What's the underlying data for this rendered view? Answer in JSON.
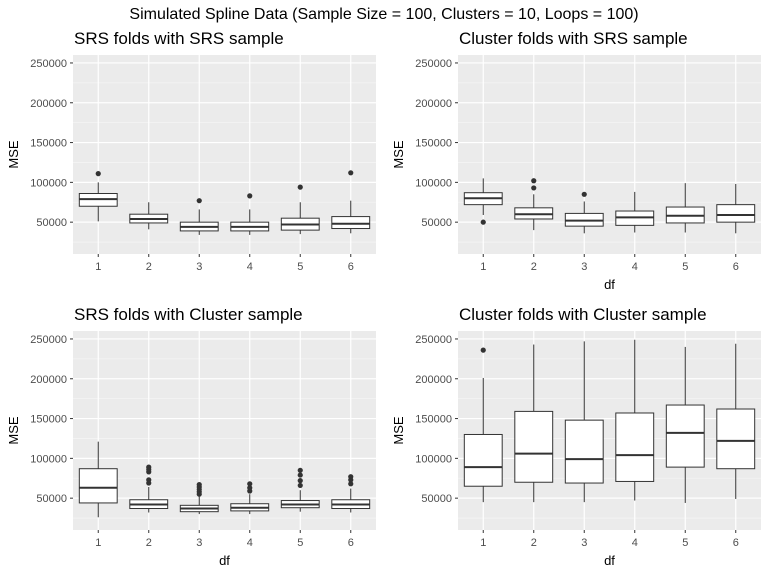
{
  "figure": {
    "title": "Simulated Spline Data (Sample Size = 100, Clusters = 10, Loops = 100)"
  },
  "chart_data": [
    {
      "type": "boxplot",
      "title": "SRS folds with SRS sample",
      "xlabel": "",
      "ylabel": "MSE",
      "ylim": [
        10000,
        260000
      ],
      "yticks": [
        50000,
        100000,
        150000,
        200000,
        250000
      ],
      "categories": [
        "1",
        "2",
        "3",
        "4",
        "5",
        "6"
      ],
      "boxes": [
        {
          "whisker_low": 51000,
          "q1": 70000,
          "median": 79000,
          "q3": 86000,
          "whisker_high": 100000,
          "outliers": [
            111000
          ]
        },
        {
          "whisker_low": 41000,
          "q1": 49000,
          "median": 54000,
          "q3": 60000,
          "whisker_high": 75000,
          "outliers": []
        },
        {
          "whisker_low": 34000,
          "q1": 39000,
          "median": 44000,
          "q3": 50000,
          "whisker_high": 66000,
          "outliers": [
            77000
          ]
        },
        {
          "whisker_low": 34000,
          "q1": 39000,
          "median": 44000,
          "q3": 50000,
          "whisker_high": 66000,
          "outliers": [
            83000
          ]
        },
        {
          "whisker_low": 35000,
          "q1": 40000,
          "median": 47000,
          "q3": 55000,
          "whisker_high": 75000,
          "outliers": [
            94000
          ]
        },
        {
          "whisker_low": 36000,
          "q1": 42000,
          "median": 48000,
          "q3": 57000,
          "whisker_high": 77000,
          "outliers": [
            112000
          ]
        }
      ]
    },
    {
      "type": "boxplot",
      "title": "Cluster folds with SRS sample",
      "xlabel": "df",
      "ylabel": "MSE",
      "ylim": [
        10000,
        260000
      ],
      "yticks": [
        50000,
        100000,
        150000,
        200000,
        250000
      ],
      "categories": [
        "1",
        "2",
        "3",
        "4",
        "5",
        "6"
      ],
      "boxes": [
        {
          "whisker_low": 59000,
          "q1": 72000,
          "median": 80000,
          "q3": 87000,
          "whisker_high": 105000,
          "outliers": [
            50000
          ]
        },
        {
          "whisker_low": 40000,
          "q1": 54000,
          "median": 60000,
          "q3": 68000,
          "whisker_high": 85000,
          "outliers": [
            93000,
            102000
          ]
        },
        {
          "whisker_low": 36000,
          "q1": 45000,
          "median": 52000,
          "q3": 61000,
          "whisker_high": 76000,
          "outliers": [
            85000
          ]
        },
        {
          "whisker_low": 37000,
          "q1": 46000,
          "median": 56000,
          "q3": 64000,
          "whisker_high": 88000,
          "outliers": []
        },
        {
          "whisker_low": 37000,
          "q1": 49000,
          "median": 58000,
          "q3": 69000,
          "whisker_high": 99000,
          "outliers": []
        },
        {
          "whisker_low": 36000,
          "q1": 50000,
          "median": 59000,
          "q3": 72000,
          "whisker_high": 98000,
          "outliers": []
        }
      ]
    },
    {
      "type": "boxplot",
      "title": "SRS folds with Cluster sample",
      "xlabel": "df",
      "ylabel": "MSE",
      "ylim": [
        10000,
        260000
      ],
      "yticks": [
        50000,
        100000,
        150000,
        200000,
        250000
      ],
      "categories": [
        "1",
        "2",
        "3",
        "4",
        "5",
        "6"
      ],
      "boxes": [
        {
          "whisker_low": 26000,
          "q1": 44000,
          "median": 63000,
          "q3": 87000,
          "whisker_high": 121000,
          "outliers": []
        },
        {
          "whisker_low": 32000,
          "q1": 37000,
          "median": 42000,
          "q3": 48000,
          "whisker_high": 64000,
          "outliers": [
            69000,
            73000,
            83000,
            86000,
            89000
          ]
        },
        {
          "whisker_low": 30000,
          "q1": 33000,
          "median": 37000,
          "q3": 41000,
          "whisker_high": 52000,
          "outliers": [
            55000,
            58000,
            61000,
            64000,
            67000
          ]
        },
        {
          "whisker_low": 30000,
          "q1": 34000,
          "median": 38000,
          "q3": 43000,
          "whisker_high": 55000,
          "outliers": [
            59000,
            63000,
            68000
          ]
        },
        {
          "whisker_low": 33000,
          "q1": 38000,
          "median": 42000,
          "q3": 47000,
          "whisker_high": 60000,
          "outliers": [
            66000,
            72000,
            79000,
            85000
          ]
        },
        {
          "whisker_low": 32000,
          "q1": 37000,
          "median": 42000,
          "q3": 48000,
          "whisker_high": 62000,
          "outliers": [
            68000,
            73000,
            77000
          ]
        }
      ]
    },
    {
      "type": "boxplot",
      "title": "Cluster folds with Cluster sample",
      "xlabel": "df",
      "ylabel": "MSE",
      "ylim": [
        10000,
        260000
      ],
      "yticks": [
        50000,
        100000,
        150000,
        200000,
        250000
      ],
      "categories": [
        "1",
        "2",
        "3",
        "4",
        "5",
        "6"
      ],
      "boxes": [
        {
          "whisker_low": 45000,
          "q1": 65000,
          "median": 89000,
          "q3": 130000,
          "whisker_high": 201000,
          "outliers": [
            236000
          ]
        },
        {
          "whisker_low": 45000,
          "q1": 70000,
          "median": 106000,
          "q3": 159000,
          "whisker_high": 243000,
          "outliers": []
        },
        {
          "whisker_low": 45000,
          "q1": 69000,
          "median": 99000,
          "q3": 148000,
          "whisker_high": 247000,
          "outliers": []
        },
        {
          "whisker_low": 47000,
          "q1": 71000,
          "median": 104000,
          "q3": 157000,
          "whisker_high": 249000,
          "outliers": []
        },
        {
          "whisker_low": 44000,
          "q1": 89000,
          "median": 132000,
          "q3": 167000,
          "whisker_high": 240000,
          "outliers": []
        },
        {
          "whisker_low": 49000,
          "q1": 87000,
          "median": 122000,
          "q3": 162000,
          "whisker_high": 244000,
          "outliers": []
        }
      ]
    }
  ],
  "colors": {
    "panel_background": "#ebebeb",
    "grid_major": "#ffffff",
    "grid_minor": "#f4f4f4",
    "box_fill": "#ffffff",
    "box_line": "#333333",
    "outlier": "#333333",
    "tick_text": "#4d4d4d",
    "title_text": "#000000"
  }
}
